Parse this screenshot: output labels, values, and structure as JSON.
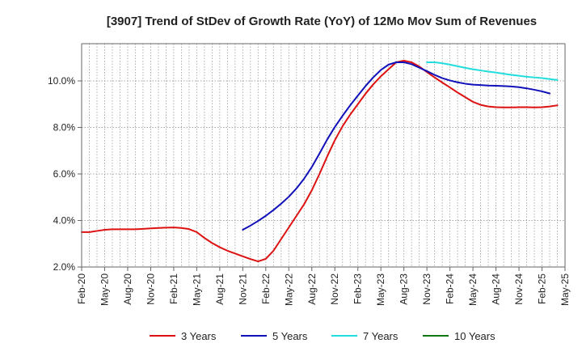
{
  "chart_data": {
    "type": "line",
    "title": "[3907]  Trend of StDev of Growth Rate (YoY) of 12Mo Mov Sum of Revenues",
    "xlabel": "",
    "ylabel": "",
    "ylim": [
      2.0,
      11.6
    ],
    "yticks": [
      2.0,
      4.0,
      6.0,
      8.0,
      10.0
    ],
    "ytick_labels": [
      "2.0%",
      "4.0%",
      "6.0%",
      "8.0%",
      "10.0%"
    ],
    "x_start": "Feb-20",
    "x_end": "May-25",
    "xtick_labels": [
      "Feb-20",
      "May-20",
      "Aug-20",
      "Nov-20",
      "Feb-21",
      "May-21",
      "Aug-21",
      "Nov-21",
      "Feb-22",
      "May-22",
      "Aug-22",
      "Nov-22",
      "Feb-23",
      "May-23",
      "Aug-23",
      "Nov-23",
      "Feb-24",
      "May-24",
      "Aug-24",
      "Nov-24",
      "Feb-25",
      "May-25"
    ],
    "grid": true,
    "legend_position": "bottom",
    "series": [
      {
        "name": "3 Years",
        "color": "#dd1111",
        "start_index": 0,
        "values": [
          3.5,
          3.5,
          3.55,
          3.6,
          3.62,
          3.62,
          3.62,
          3.62,
          3.64,
          3.66,
          3.68,
          3.69,
          3.7,
          3.68,
          3.63,
          3.5,
          3.25,
          3.03,
          2.85,
          2.7,
          2.58,
          2.46,
          2.34,
          2.24,
          2.35,
          2.7,
          3.2,
          3.7,
          4.2,
          4.7,
          5.3,
          6.0,
          6.75,
          7.45,
          8.05,
          8.55,
          9.0,
          9.45,
          9.85,
          10.2,
          10.5,
          10.8,
          10.87,
          10.8,
          10.62,
          10.38,
          10.15,
          9.93,
          9.72,
          9.5,
          9.3,
          9.1,
          8.97,
          8.9,
          8.87,
          8.86,
          8.86,
          8.87,
          8.87,
          8.86,
          8.87,
          8.9,
          8.95
        ]
      },
      {
        "name": "5 Years",
        "color": "#1111bb",
        "start_index": 21,
        "values": [
          3.6,
          3.78,
          3.98,
          4.2,
          4.45,
          4.72,
          5.02,
          5.38,
          5.8,
          6.3,
          6.88,
          7.48,
          8.02,
          8.5,
          8.95,
          9.37,
          9.78,
          10.15,
          10.47,
          10.7,
          10.8,
          10.8,
          10.72,
          10.57,
          10.42,
          10.26,
          10.12,
          10.02,
          9.94,
          9.88,
          9.84,
          9.82,
          9.8,
          9.79,
          9.78,
          9.76,
          9.73,
          9.68,
          9.62,
          9.55,
          9.46
        ]
      },
      {
        "name": "7 Years",
        "color": "#22dddd",
        "start_index": 45,
        "values": [
          10.8,
          10.8,
          10.76,
          10.7,
          10.63,
          10.56,
          10.5,
          10.45,
          10.4,
          10.36,
          10.31,
          10.26,
          10.22,
          10.18,
          10.15,
          10.12,
          10.08,
          10.04
        ]
      },
      {
        "name": "10 Years",
        "color": "#117711",
        "start_index": 0,
        "values": []
      }
    ]
  }
}
